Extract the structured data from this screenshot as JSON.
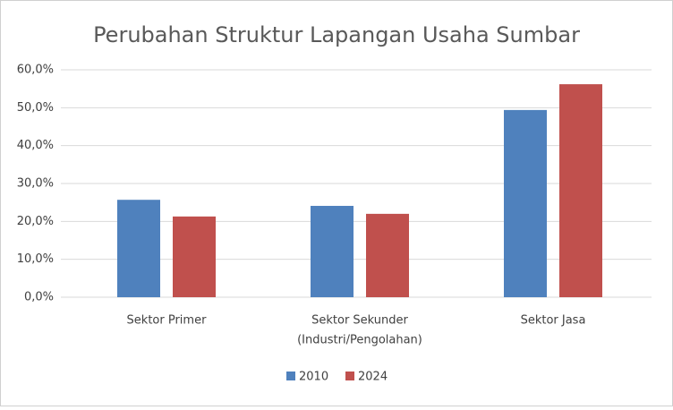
{
  "chart_data": {
    "type": "bar",
    "title": "Perubahan Struktur Lapangan Usaha Sumbar",
    "categories": [
      [
        "Sektor Primer"
      ],
      [
        "Sektor Sekunder",
        "(Industri/Pengolahan)"
      ],
      [
        "Sektor Jasa"
      ]
    ],
    "series": [
      {
        "name": "2010",
        "color": "#4f81bd",
        "values": [
          25.7,
          24.1,
          49.4
        ]
      },
      {
        "name": "2024",
        "color": "#c0504d",
        "values": [
          21.3,
          22.0,
          56.2
        ]
      }
    ],
    "ylim": [
      0,
      60
    ],
    "yticks": [
      {
        "value": 0,
        "label": "0,0%"
      },
      {
        "value": 10,
        "label": "10,0%"
      },
      {
        "value": 20,
        "label": "20,0%"
      },
      {
        "value": 30,
        "label": "30,0%"
      },
      {
        "value": 40,
        "label": "40,0%"
      },
      {
        "value": 50,
        "label": "50,0%"
      },
      {
        "value": 60,
        "label": "60,0%"
      }
    ],
    "grid": true,
    "legend": "bottom"
  }
}
